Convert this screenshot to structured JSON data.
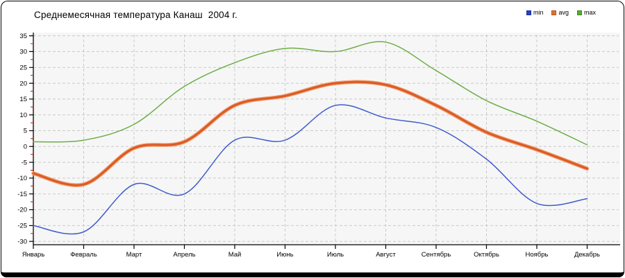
{
  "title": "Среднемесячная температура Канаш  2004 г.",
  "legend": {
    "items": [
      {
        "label": "min",
        "color": "#2440cf"
      },
      {
        "label": "avg",
        "color": "#e8702a"
      },
      {
        "label": "max",
        "color": "#54b02a"
      }
    ],
    "position": "top-right"
  },
  "chart_data": {
    "type": "line",
    "title": "Среднемесячная температура Канаш  2004 г.",
    "categories": [
      "Январь",
      "Февраль",
      "Март",
      "Апрель",
      "Май",
      "Июнь",
      "Июль",
      "Август",
      "Сентябрь",
      "Октябрь",
      "Ноябрь",
      "Декабрь"
    ],
    "series": [
      {
        "name": "min",
        "color": "#3f5bcd",
        "halo": "",
        "values": [
          -25,
          -27,
          -12,
          -15,
          2,
          2,
          13,
          9,
          6,
          -4,
          -18,
          -16.5
        ]
      },
      {
        "name": "avg",
        "color": "#db5c25",
        "halo": "#f2a276",
        "values": [
          -8.5,
          -12,
          -0.5,
          1.5,
          13,
          16,
          20,
          19.5,
          13,
          4.5,
          -1,
          -7
        ]
      },
      {
        "name": "max",
        "color": "#6bad44",
        "halo": "",
        "values": [
          1.5,
          2,
          7,
          19,
          26.5,
          31,
          30,
          33,
          24,
          14.5,
          8,
          0.5
        ]
      }
    ],
    "xlabel": "",
    "ylabel": "",
    "ylim": [
      -30,
      35
    ],
    "ytick_step": 5,
    "yticks": [
      35,
      30,
      25,
      20,
      15,
      10,
      5,
      0,
      -5,
      -10,
      -15,
      -20,
      -25,
      -30
    ],
    "grid": "dashed",
    "grid_color": "#c9c9c9",
    "plot_background": "#f6f6f6",
    "axis_color": "#000000",
    "minor_tick_color": "#cc2200",
    "legend_position": "top-right"
  }
}
